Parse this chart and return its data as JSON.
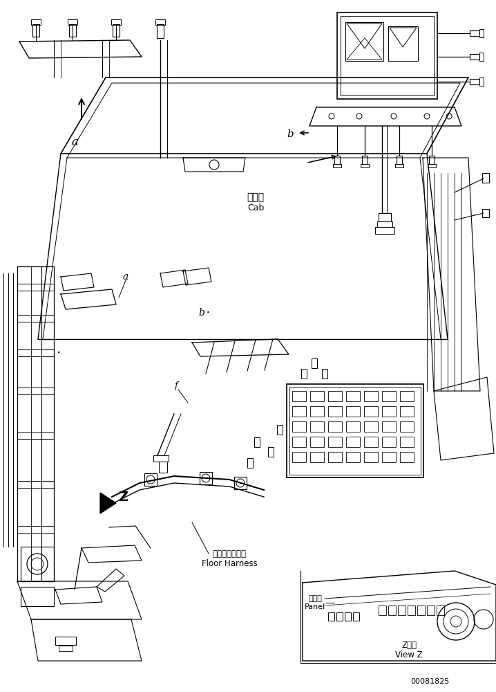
{
  "title": "",
  "background_color": "#ffffff",
  "line_color": "#000000",
  "fig_width": 7.18,
  "fig_height": 10.0,
  "dpi": 100,
  "labels": {
    "cab_jp": "キャブ",
    "cab_en": "Cab",
    "floor_harness_jp": "フロアハーネス",
    "floor_harness_en": "Floor Harness",
    "panel_jp": "パネル",
    "panel_en": "Panel",
    "view_z_jp": "Z　視",
    "view_z_en": "View Z",
    "part_number": "00081825",
    "label_a": "a",
    "label_b": "b",
    "label_z": "Z"
  }
}
